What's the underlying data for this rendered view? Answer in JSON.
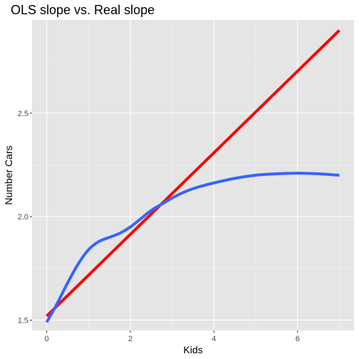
{
  "chart_data": {
    "type": "line",
    "title": "OLS slope vs. Real slope",
    "xlabel": "Kids",
    "ylabel": "Number Cars",
    "xlim": [
      -0.35,
      7.35
    ],
    "ylim": [
      1.45,
      2.95
    ],
    "x_ticks": [
      0,
      2,
      4,
      6
    ],
    "x_tick_labels": [
      "0",
      "2",
      "4",
      "6"
    ],
    "y_ticks": [
      1.5,
      2.0,
      2.5
    ],
    "y_tick_labels": [
      "1.5",
      "2.0",
      "2.5"
    ],
    "grid": true,
    "legend": "none",
    "series": [
      {
        "color": "#ff0000",
        "x": [
          0,
          7
        ],
        "y": [
          1.52,
          2.9
        ]
      },
      {
        "color": "#3366ff",
        "x": [
          0,
          0.25,
          0.5,
          0.75,
          1.0,
          1.25,
          1.5,
          1.75,
          2.0,
          2.25,
          2.5,
          2.75,
          3.0,
          3.25,
          3.5,
          3.75,
          4.0,
          4.5,
          5.0,
          5.5,
          6.0,
          6.5,
          7.0
        ],
        "y": [
          1.49,
          1.58,
          1.68,
          1.77,
          1.84,
          1.88,
          1.9,
          1.92,
          1.95,
          1.99,
          2.03,
          2.06,
          2.09,
          2.115,
          2.135,
          2.15,
          2.163,
          2.185,
          2.2,
          2.207,
          2.21,
          2.207,
          2.2
        ]
      }
    ]
  },
  "colors": {
    "panel_bg": "#e5e5e5",
    "grid_major": "#ffffff",
    "grid_minor": "#f2f2f2"
  }
}
